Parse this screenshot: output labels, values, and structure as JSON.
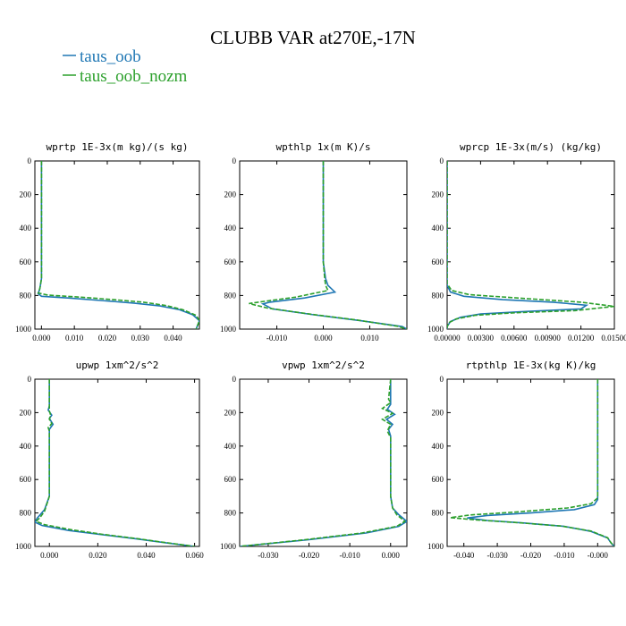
{
  "title": "CLUBB VAR at270E,-17N",
  "legend": [
    {
      "name": "taus_oob",
      "color": "#1f77b4",
      "dash": "solid"
    },
    {
      "name": "taus_oob_nozm",
      "color": "#2ca02c",
      "dash": "dashed"
    }
  ],
  "chart_data": [
    {
      "type": "line",
      "title": "wprtp  1E-3x(m kg)/(s kg)",
      "xlim": [
        -0.002,
        0.048
      ],
      "ylim": [
        1000,
        0
      ],
      "xticks": [
        "0.000",
        "0.010",
        "0.020",
        "0.030",
        "0.040"
      ],
      "xtick_values": [
        0,
        0.01,
        0.02,
        0.03,
        0.04
      ],
      "yticks": [
        "0",
        "200",
        "400",
        "600",
        "800",
        "1000"
      ],
      "series": [
        {
          "name": "taus_oob",
          "points": [
            [
              0.0,
              0
            ],
            [
              0.0,
              100
            ],
            [
              0.0,
              300
            ],
            [
              0.0,
              500
            ],
            [
              0.0,
              700
            ],
            [
              -0.0005,
              760
            ],
            [
              -0.001,
              790
            ],
            [
              0.0,
              805
            ],
            [
              0.008,
              815
            ],
            [
              0.018,
              830
            ],
            [
              0.028,
              845
            ],
            [
              0.036,
              862
            ],
            [
              0.042,
              885
            ],
            [
              0.046,
              915
            ],
            [
              0.048,
              950
            ],
            [
              0.047,
              1000
            ]
          ]
        },
        {
          "name": "taus_oob_nozm",
          "points": [
            [
              0.0,
              0
            ],
            [
              0.0,
              100
            ],
            [
              0.0,
              300
            ],
            [
              0.0,
              500
            ],
            [
              0.0,
              700
            ],
            [
              -0.0005,
              760
            ],
            [
              -0.001,
              785
            ],
            [
              0.002,
              798
            ],
            [
              0.012,
              810
            ],
            [
              0.022,
              825
            ],
            [
              0.031,
              840
            ],
            [
              0.038,
              860
            ],
            [
              0.043,
              885
            ],
            [
              0.047,
              918
            ],
            [
              0.048,
              950
            ],
            [
              0.047,
              1000
            ]
          ]
        }
      ]
    },
    {
      "type": "line",
      "title": "wpthlp  1x(m K)/s",
      "xlim": [
        -0.018,
        0.018
      ],
      "ylim": [
        1000,
        0
      ],
      "xticks": [
        "-0.010",
        "0.000",
        "0.010"
      ],
      "xtick_values": [
        -0.01,
        0,
        0.01
      ],
      "yticks": [
        "0",
        "200",
        "400",
        "600",
        "800",
        "1000"
      ],
      "series": [
        {
          "name": "taus_oob",
          "points": [
            [
              0.0,
              0
            ],
            [
              0.0,
              200
            ],
            [
              0.0,
              400
            ],
            [
              0.0,
              600
            ],
            [
              0.0005,
              700
            ],
            [
              0.001,
              740
            ],
            [
              0.0025,
              780
            ],
            [
              -0.004,
              815
            ],
            [
              -0.0115,
              840
            ],
            [
              -0.013,
              850
            ],
            [
              -0.011,
              880
            ],
            [
              -0.002,
              915
            ],
            [
              0.008,
              950
            ],
            [
              0.017,
              985
            ],
            [
              0.018,
              1000
            ]
          ]
        },
        {
          "name": "taus_oob_nozm",
          "points": [
            [
              0.0,
              0
            ],
            [
              0.0,
              200
            ],
            [
              0.0,
              400
            ],
            [
              0.0,
              600
            ],
            [
              0.0003,
              700
            ],
            [
              0.0005,
              740
            ],
            [
              0.001,
              770
            ],
            [
              -0.006,
              810
            ],
            [
              -0.014,
              840
            ],
            [
              -0.016,
              848
            ],
            [
              -0.012,
              875
            ],
            [
              -0.003,
              910
            ],
            [
              0.007,
              945
            ],
            [
              0.016,
              983
            ],
            [
              0.018,
              1000
            ]
          ]
        }
      ]
    },
    {
      "type": "line",
      "title": "wprcp  1E-3x(m/s) (kg/kg)",
      "xlim": [
        0,
        0.015
      ],
      "ylim": [
        1000,
        0
      ],
      "xticks": [
        "0.00000",
        "0.00300",
        "0.00600",
        "0.00900",
        "0.01200",
        "0.01500"
      ],
      "xtick_values": [
        0,
        0.003,
        0.006,
        0.009,
        0.012,
        0.015
      ],
      "yticks": [
        "0",
        "200",
        "400",
        "600",
        "800",
        "1000"
      ],
      "series": [
        {
          "name": "taus_oob",
          "points": [
            [
              0,
              0
            ],
            [
              0,
              500
            ],
            [
              0,
              740
            ],
            [
              0.0003,
              780
            ],
            [
              0.0015,
              805
            ],
            [
              0.005,
              825
            ],
            [
              0.0095,
              840
            ],
            [
              0.0125,
              858
            ],
            [
              0.012,
              880
            ],
            [
              0.007,
              895
            ],
            [
              0.003,
              910
            ],
            [
              0.0012,
              930
            ],
            [
              0.0003,
              955
            ],
            [
              0,
              985
            ],
            [
              0,
              1000
            ]
          ]
        },
        {
          "name": "taus_oob_nozm",
          "points": [
            [
              0,
              0
            ],
            [
              0,
              500
            ],
            [
              0,
              730
            ],
            [
              0.0004,
              770
            ],
            [
              0.002,
              795
            ],
            [
              0.007,
              818
            ],
            [
              0.012,
              840
            ],
            [
              0.015,
              865
            ],
            [
              0.0115,
              890
            ],
            [
              0.006,
              903
            ],
            [
              0.0025,
              918
            ],
            [
              0.0008,
              940
            ],
            [
              0.0002,
              960
            ],
            [
              0,
              985
            ],
            [
              0,
              1000
            ]
          ]
        }
      ]
    },
    {
      "type": "line",
      "title": "upwp  1xm^2/s^2",
      "xlim": [
        -0.006,
        0.062
      ],
      "ylim": [
        1000,
        0
      ],
      "xticks": [
        "0.000",
        "0.020",
        "0.040",
        "0.060"
      ],
      "xtick_values": [
        0,
        0.02,
        0.04,
        0.06
      ],
      "yticks": [
        "0",
        "200",
        "400",
        "600",
        "800",
        "1000"
      ],
      "series": [
        {
          "name": "taus_oob",
          "points": [
            [
              0.0,
              0
            ],
            [
              0.0,
              160
            ],
            [
              -0.0005,
              185
            ],
            [
              0.001,
              215
            ],
            [
              0.0,
              235
            ],
            [
              0.0015,
              270
            ],
            [
              0.0,
              300
            ],
            [
              0.0,
              500
            ],
            [
              0.0,
              700
            ],
            [
              -0.002,
              780
            ],
            [
              -0.005,
              830
            ],
            [
              -0.006,
              855
            ],
            [
              -0.003,
              875
            ],
            [
              0.008,
              905
            ],
            [
              0.022,
              930
            ],
            [
              0.036,
              955
            ],
            [
              0.048,
              978
            ],
            [
              0.06,
              1000
            ]
          ]
        },
        {
          "name": "taus_oob_nozm",
          "points": [
            [
              0.0,
              0
            ],
            [
              0.0,
              160
            ],
            [
              0.0,
              190
            ],
            [
              0.0005,
              215
            ],
            [
              0.0,
              240
            ],
            [
              0.001,
              265
            ],
            [
              -0.0005,
              290
            ],
            [
              0.0,
              310
            ],
            [
              0.0,
              500
            ],
            [
              0.0,
              700
            ],
            [
              -0.002,
              790
            ],
            [
              -0.004,
              830
            ],
            [
              -0.0055,
              850
            ],
            [
              -0.002,
              870
            ],
            [
              0.009,
              900
            ],
            [
              0.022,
              928
            ],
            [
              0.036,
              953
            ],
            [
              0.048,
              977
            ],
            [
              0.06,
              1000
            ]
          ]
        }
      ]
    },
    {
      "type": "line",
      "title": "vpwp  1xm^2/s^2",
      "xlim": [
        -0.037,
        0.004
      ],
      "ylim": [
        1000,
        0
      ],
      "xticks": [
        "-0.030",
        "-0.020",
        "-0.010",
        "0.000"
      ],
      "xtick_values": [
        -0.03,
        -0.02,
        -0.01,
        0
      ],
      "yticks": [
        "0",
        "200",
        "400",
        "600",
        "800",
        "1000"
      ],
      "series": [
        {
          "name": "taus_oob",
          "points": [
            [
              0.0,
              0
            ],
            [
              0.0,
              120
            ],
            [
              0.0,
              150
            ],
            [
              -0.0008,
              180
            ],
            [
              0.001,
              210
            ],
            [
              -0.001,
              240
            ],
            [
              0.0005,
              270
            ],
            [
              -0.0005,
              300
            ],
            [
              0.0,
              340
            ],
            [
              0.0,
              500
            ],
            [
              0.0,
              700
            ],
            [
              0.0005,
              770
            ],
            [
              0.002,
              810
            ],
            [
              0.004,
              850
            ],
            [
              0.002,
              880
            ],
            [
              -0.006,
              920
            ],
            [
              -0.02,
              960
            ],
            [
              -0.037,
              1000
            ]
          ]
        },
        {
          "name": "taus_oob_nozm",
          "points": [
            [
              0.0,
              0
            ],
            [
              -0.0005,
              120
            ],
            [
              0.0,
              140
            ],
            [
              -0.002,
              175
            ],
            [
              0.0005,
              205
            ],
            [
              -0.002,
              240
            ],
            [
              0.0,
              270
            ],
            [
              -0.0008,
              310
            ],
            [
              0.0,
              350
            ],
            [
              0.0,
              500
            ],
            [
              0.0,
              700
            ],
            [
              0.0005,
              770
            ],
            [
              0.0015,
              810
            ],
            [
              0.0035,
              850
            ],
            [
              0.0015,
              880
            ],
            [
              -0.007,
              920
            ],
            [
              -0.021,
              960
            ],
            [
              -0.037,
              1000
            ]
          ]
        }
      ]
    },
    {
      "type": "line",
      "title": "rtpthlp  1E-3x(kg K)/kg",
      "xlim": [
        -0.045,
        0.005
      ],
      "ylim": [
        1000,
        0
      ],
      "xticks": [
        "-0.040",
        "-0.030",
        "-0.020",
        "-0.010",
        "-0.000"
      ],
      "xtick_values": [
        -0.04,
        -0.03,
        -0.02,
        -0.01,
        0
      ],
      "yticks": [
        "0",
        "200",
        "400",
        "600",
        "800",
        "1000"
      ],
      "series": [
        {
          "name": "taus_oob",
          "points": [
            [
              0.0,
              0
            ],
            [
              0.0,
              200
            ],
            [
              0.0,
              400
            ],
            [
              0.0,
              600
            ],
            [
              0.0,
              720
            ],
            [
              -0.001,
              750
            ],
            [
              -0.007,
              780
            ],
            [
              -0.02,
              800
            ],
            [
              -0.033,
              815
            ],
            [
              -0.039,
              830
            ],
            [
              -0.033,
              845
            ],
            [
              -0.022,
              860
            ],
            [
              -0.01,
              880
            ],
            [
              -0.002,
              910
            ],
            [
              0.003,
              950
            ],
            [
              0.004,
              980
            ],
            [
              0.005,
              1000
            ]
          ]
        },
        {
          "name": "taus_oob_nozm",
          "points": [
            [
              0.0,
              0
            ],
            [
              0.0,
              200
            ],
            [
              0.0,
              400
            ],
            [
              0.0,
              600
            ],
            [
              0.0,
              710
            ],
            [
              -0.002,
              745
            ],
            [
              -0.009,
              770
            ],
            [
              -0.025,
              795
            ],
            [
              -0.038,
              812
            ],
            [
              -0.044,
              828
            ],
            [
              -0.036,
              842
            ],
            [
              -0.024,
              858
            ],
            [
              -0.011,
              878
            ],
            [
              -0.002,
              908
            ],
            [
              0.003,
              948
            ],
            [
              0.004,
              978
            ],
            [
              0.005,
              1000
            ]
          ]
        }
      ]
    }
  ]
}
